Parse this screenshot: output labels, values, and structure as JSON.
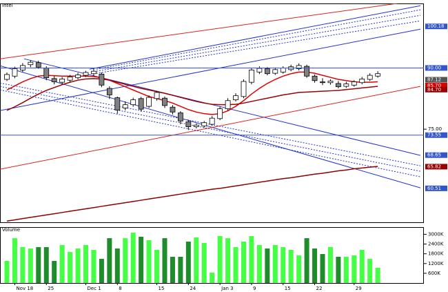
{
  "chart_data": {
    "type": "candlestick",
    "title": "Intel",
    "categories": [
      null,
      "Nov 18",
      null,
      null,
      null,
      "25",
      null,
      null,
      null,
      null,
      "Dec 1",
      null,
      null,
      null,
      "8",
      null,
      null,
      null,
      null,
      "15",
      null,
      null,
      null,
      "24",
      null,
      null,
      null,
      "Jan 3",
      null,
      null,
      null,
      "9",
      null,
      null,
      null,
      "15",
      null,
      null,
      null,
      "22",
      null,
      null,
      null,
      null,
      "29",
      null,
      null,
      null
    ],
    "open": [
      87.2,
      88.0,
      89.5,
      90.8,
      91.3,
      90.0,
      87.4,
      86.5,
      87.0,
      87.6,
      88.2,
      88.6,
      88.5,
      85.0,
      82.7,
      80.2,
      81.0,
      82.5,
      80.6,
      82.5,
      82.6,
      80.4,
      79.0,
      76.8,
      75.6,
      75.8,
      76.2,
      77.6,
      80.0,
      82.2,
      83.0,
      86.5,
      89.0,
      89.8,
      88.7,
      89.0,
      89.6,
      89.8,
      90.4,
      88.0,
      86.6,
      86.4,
      86.2,
      85.5,
      85.8,
      86.4,
      87.2,
      88.0
    ],
    "high": [
      88.9,
      90.3,
      91.2,
      91.9,
      91.8,
      90.4,
      88.0,
      87.8,
      88.3,
      88.8,
      89.3,
      90.0,
      88.9,
      85.5,
      83.0,
      81.8,
      82.7,
      82.9,
      83.3,
      84.4,
      83.0,
      80.9,
      79.4,
      77.3,
      76.4,
      77.0,
      78.2,
      80.5,
      82.6,
      83.8,
      87.2,
      90.0,
      90.4,
      90.2,
      90.1,
      90.4,
      90.8,
      91.1,
      90.8,
      88.4,
      87.5,
      87.2,
      86.8,
      86.6,
      87.0,
      87.8,
      88.7,
      89.2
    ],
    "low": [
      86.8,
      87.5,
      89.0,
      90.2,
      89.8,
      87.0,
      86.0,
      86.0,
      86.5,
      87.2,
      87.8,
      88.0,
      85.3,
      82.4,
      78.8,
      79.6,
      80.5,
      79.3,
      80.2,
      82.0,
      80.2,
      78.6,
      76.2,
      74.8,
      75.2,
      75.4,
      75.8,
      77.2,
      79.6,
      81.8,
      82.6,
      86.0,
      88.5,
      88.2,
      88.3,
      88.6,
      89.2,
      89.4,
      87.6,
      86.4,
      85.8,
      85.9,
      85.0,
      85.1,
      85.4,
      86.0,
      86.8,
      87.6
    ],
    "close": [
      88.4,
      89.8,
      90.6,
      91.4,
      90.2,
      87.6,
      86.6,
      87.3,
      87.8,
      88.3,
      88.9,
      89.2,
      85.8,
      83.4,
      79.7,
      81.0,
      82.2,
      79.9,
      82.8,
      84.0,
      80.8,
      79.2,
      77.0,
      75.6,
      76.0,
      76.6,
      77.7,
      80.0,
      82.0,
      83.2,
      86.7,
      89.5,
      89.9,
      88.6,
      89.6,
      90.0,
      90.3,
      90.6,
      88.0,
      86.9,
      86.4,
      86.8,
      85.4,
      86.1,
      86.6,
      87.3,
      88.2,
      88.6
    ],
    "up_color": "#ffffff",
    "down_color": "#808080",
    "ylim": [
      52.2,
      105.8
    ],
    "yticks": [
      {
        "value": 75,
        "label": "75.00"
      }
    ],
    "price_markers": [
      {
        "value": 100.18,
        "label": "100.18",
        "color": "#3355cc"
      },
      {
        "value": 90,
        "label": "90.00",
        "color": "#3355cc",
        "line": true
      },
      {
        "value": 87.12,
        "label": "87.12",
        "color": "#555555"
      },
      {
        "value": 85.7,
        "label": "85.70",
        "color": "#dd0000"
      },
      {
        "value": 84.7,
        "label": "84.70",
        "color": "#990000"
      },
      {
        "value": 73.55,
        "label": "73.55",
        "color": "#3355cc",
        "line": true
      },
      {
        "value": 68.65,
        "label": "68.65",
        "color": "#3355cc"
      },
      {
        "value": 65.82,
        "label": "65.82",
        "color": "#990000"
      },
      {
        "value": 60.51,
        "label": "60.51",
        "color": "#3355cc"
      }
    ],
    "moving_averages": [
      {
        "color": "#e00000",
        "values": [
          84.6,
          85.6,
          86.6,
          87.4,
          88.0,
          88.2,
          88.1,
          88.0,
          88.0,
          88.0,
          88.0,
          87.9,
          87.6,
          87.0,
          86.2,
          85.4,
          84.6,
          83.8,
          83.0,
          82.5,
          82.0,
          81.4,
          80.6,
          79.8,
          79.2,
          78.8,
          78.6,
          78.8,
          79.5,
          80.6,
          82.0,
          83.6,
          85.0,
          86.2,
          87.2,
          88.0,
          88.6,
          89.0,
          89.0,
          88.7,
          88.2,
          87.7,
          87.2,
          86.9,
          86.6,
          86.5,
          86.5,
          86.6
        ]
      },
      {
        "color": "#990000",
        "values": [
          79.6,
          80.5,
          81.5,
          82.6,
          83.6,
          84.5,
          85.2,
          85.9,
          86.5,
          87.0,
          87.3,
          87.4,
          87.3,
          87.0,
          86.5,
          86.0,
          85.5,
          85.0,
          84.6,
          84.2,
          83.8,
          83.3,
          82.8,
          82.3,
          81.8,
          81.4,
          81.1,
          81.0,
          81.0,
          81.1,
          81.4,
          81.8,
          82.2,
          82.6,
          83.0,
          83.4,
          83.7,
          84.0,
          84.1,
          84.2,
          84.3,
          84.4,
          84.5,
          84.7,
          84.9,
          85.1,
          85.3,
          85.5
        ]
      },
      {
        "color": "#8b0000",
        "values": [
          52.5,
          52.8,
          53.1,
          53.4,
          53.7,
          54.0,
          54.3,
          54.6,
          54.9,
          55.2,
          55.5,
          55.8,
          56.1,
          56.4,
          56.7,
          57.0,
          57.3,
          57.6,
          57.9,
          58.2,
          58.5,
          58.8,
          59.1,
          59.4,
          59.7,
          60.0,
          60.3,
          60.5,
          60.8,
          61.1,
          61.4,
          61.7,
          62.0,
          62.3,
          62.6,
          62.9,
          63.1,
          63.4,
          63.7,
          64.0,
          64.2,
          64.5,
          64.8,
          65.0,
          65.3,
          65.5,
          65.7,
          65.9
        ]
      }
    ],
    "trendlines": [
      {
        "color": "#dd2222",
        "style": "solid",
        "x": [
          -0.87,
          52.4
        ],
        "y": [
          92.24,
          106.6
        ]
      },
      {
        "color": "#2233cc",
        "style": "solid",
        "x": [
          -0.87,
          52.4
        ],
        "y": [
          79.56,
          99.51
        ]
      },
      {
        "color": "#2233cc",
        "style": "solid",
        "x": [
          10.48,
          52.4
        ],
        "y": [
          89.7,
          105.25
        ]
      },
      {
        "color": "#2233cc",
        "style": "dotted",
        "x": [
          11.35,
          52.4
        ],
        "y": [
          89.7,
          104.24
        ]
      },
      {
        "color": "#2233cc",
        "style": "dotted",
        "x": [
          11.35,
          52.4
        ],
        "y": [
          89.2,
          102.89
        ]
      },
      {
        "color": "#2233cc",
        "style": "dotted",
        "x": [
          11.35,
          52.4
        ],
        "y": [
          88.69,
          101.53
        ]
      },
      {
        "color": "#2233cc",
        "style": "solid",
        "x": [
          2.18,
          52.4
        ],
        "y": [
          92.24,
          68.58
        ]
      },
      {
        "color": "#2233cc",
        "style": "solid",
        "x": [
          -0.87,
          52.4
        ],
        "y": [
          90.55,
          60.64
        ]
      },
      {
        "color": "#2233cc",
        "style": "dotted",
        "x": [
          -0.87,
          52.4
        ],
        "y": [
          86.32,
          66.04
        ]
      },
      {
        "color": "#2233cc",
        "style": "dotted",
        "x": [
          -0.87,
          52.4
        ],
        "y": [
          85.48,
          64.69
        ]
      },
      {
        "color": "#2233cc",
        "style": "dotted",
        "x": [
          -0.87,
          52.4
        ],
        "y": [
          84.63,
          63.34
        ]
      },
      {
        "color": "#dd2222",
        "style": "solid",
        "x": [
          -0.87,
          52.4
        ],
        "y": [
          65.2,
          85.48
        ]
      }
    ],
    "volume": {
      "label": "Volume",
      "values": [
        1360,
        2760,
        2210,
        2125,
        2210,
        2210,
        1360,
        2340,
        1910,
        2125,
        2340,
        2040,
        1490,
        2760,
        2125,
        2760,
        3100,
        2850,
        2635,
        2040,
        2760,
        1615,
        1615,
        2550,
        2805,
        2465,
        640,
        2890,
        2760,
        2210,
        2550,
        2890,
        2340,
        2125,
        2340,
        2210,
        2040,
        1700,
        2760,
        2125,
        1785,
        2210,
        1615,
        1615,
        1700,
        2040,
        1490,
        935
      ],
      "up_color": "#44ff44",
      "down_color": "#1e8c2a",
      "ylim": [
        0,
        3400
      ],
      "yticks": [
        {
          "value": 3000,
          "label": "3000K"
        },
        {
          "value": 2400,
          "label": "2400K"
        },
        {
          "value": 1800,
          "label": "1800K"
        },
        {
          "value": 1200,
          "label": "1200K"
        },
        {
          "value": 600,
          "label": "600K"
        }
      ]
    }
  }
}
